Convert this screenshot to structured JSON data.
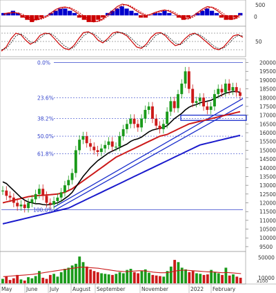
{
  "chart_data": [
    {
      "type": "bar",
      "panel": "macd-histogram",
      "title": "",
      "y_ticks": [
        500,
        0
      ],
      "series": [
        {
          "type": "bar",
          "colors": [
            "#0000cc",
            "#cc0000"
          ],
          "values": [
            1,
            1,
            2,
            1,
            -1,
            -2,
            -3,
            -2,
            -1,
            0,
            1,
            2,
            3,
            3,
            2,
            1,
            -1,
            -2,
            -3,
            -3,
            -2,
            -1,
            1,
            2,
            3,
            4,
            3,
            2,
            1,
            -1,
            -1,
            0,
            1,
            1,
            2,
            1,
            0,
            -1,
            -2,
            -1,
            0,
            1,
            2,
            3,
            2,
            1,
            -1,
            -2,
            -2,
            -1,
            1
          ]
        },
        {
          "type": "line",
          "color": "#cc0000",
          "values": [
            0.3,
            0.5,
            0.6,
            0.4,
            -0.2,
            -0.8,
            -1.1,
            -0.9,
            -0.6,
            -0.2,
            0.5,
            1.2,
            1.6,
            1.7,
            1.4,
            0.8,
            0.1,
            -0.6,
            -1.2,
            -1.4,
            -1.2,
            -0.7,
            0.2,
            1.0,
            1.8,
            2.3,
            2.1,
            1.6,
            0.9,
            0.3,
            -0.1,
            0.2,
            0.6,
            0.9,
            1.1,
            0.8,
            0.3,
            -0.3,
            -0.8,
            -0.7,
            -0.1,
            0.6,
            1.3,
            1.8,
            1.6,
            1.0,
            0.2,
            -0.5,
            -0.9,
            -0.6,
            0.2
          ]
        },
        {
          "type": "line",
          "color": "#cc0000",
          "dashed": true,
          "values": [
            0.1,
            0.3,
            0.5,
            0.5,
            0.2,
            -0.3,
            -0.8,
            -1.0,
            -0.8,
            -0.4,
            0.2,
            0.9,
            1.3,
            1.6,
            1.6,
            1.1,
            0.5,
            -0.2,
            -0.9,
            -1.3,
            -1.3,
            -0.9,
            -0.2,
            0.6,
            1.4,
            2.0,
            2.2,
            1.8,
            1.2,
            0.6,
            0.1,
            0.0,
            0.4,
            0.7,
            1.0,
            1.0,
            0.6,
            0.0,
            -0.5,
            -0.8,
            -0.4,
            0.3,
            1.0,
            1.5,
            1.7,
            1.3,
            0.6,
            -0.1,
            -0.7,
            -0.8,
            -0.2
          ]
        }
      ]
    },
    {
      "type": "line",
      "panel": "stochastic",
      "title": "",
      "y_ticks": [
        50
      ],
      "series": [
        {
          "color": "#cc0000",
          "values": [
            15,
            30,
            60,
            80,
            75,
            55,
            40,
            50,
            72,
            80,
            78,
            60,
            40,
            25,
            20,
            35,
            60,
            82,
            85,
            75,
            55,
            45,
            60,
            80,
            85,
            80,
            70,
            50,
            30,
            25,
            40,
            65,
            80,
            82,
            70,
            50,
            35,
            40,
            60,
            75,
            80,
            70,
            55,
            40,
            25,
            20,
            30,
            50,
            70,
            75,
            65
          ]
        },
        {
          "color": "#111111",
          "dashed": true,
          "values": [
            20,
            25,
            45,
            70,
            78,
            65,
            48,
            45,
            62,
            76,
            80,
            70,
            52,
            35,
            24,
            28,
            48,
            70,
            82,
            80,
            66,
            50,
            52,
            70,
            82,
            82,
            75,
            60,
            42,
            30,
            32,
            52,
            72,
            80,
            76,
            60,
            44,
            38,
            50,
            68,
            78,
            75,
            63,
            48,
            33,
            24,
            26,
            40,
            60,
            72,
            70
          ]
        }
      ]
    },
    {
      "type": "line",
      "panel": "price",
      "title": "",
      "y_ticks": [
        20000,
        19500,
        19000,
        18500,
        18000,
        17500,
        17000,
        16500,
        16000,
        15500,
        15000,
        14500,
        14000,
        13500,
        13000,
        12500,
        12000,
        11500,
        11000,
        10500,
        10000,
        9500
      ],
      "ylim": [
        9300,
        20100
      ],
      "x_labels": [
        "May",
        "June",
        "July",
        "August",
        "September",
        "November",
        "2022",
        "February"
      ],
      "fib_levels": [
        {
          "label": "0.0%",
          "value": 20000
        },
        {
          "label": "23.6%",
          "value": 18000
        },
        {
          "label": "38.2%",
          "value": 16800
        },
        {
          "label": "50.0%",
          "value": 15800
        },
        {
          "label": "61.8%",
          "value": 14800
        },
        {
          "label": "100.0%",
          "value": 11600
        }
      ],
      "price": [
        12700,
        12400,
        12300,
        12000,
        11800,
        11900,
        11700,
        12000,
        12200,
        12500,
        12800,
        12400,
        12000,
        11900,
        12100,
        12300,
        12600,
        13000,
        13300,
        13700,
        15000,
        15600,
        15800,
        15400,
        15200,
        15000,
        14900,
        15100,
        15300,
        15500,
        15200,
        15200,
        15800,
        16200,
        16500,
        16800,
        16500,
        16300,
        16800,
        17300,
        17500,
        16800,
        16400,
        16200,
        16500,
        17200,
        17800,
        17400,
        18200,
        18800,
        19500,
        18500,
        17700,
        17800,
        18000,
        17500,
        17300,
        17500,
        18200,
        18500,
        18300,
        18800,
        18400,
        18600,
        18300,
        18100
      ],
      "ema_black": [
        13200,
        13100,
        12900,
        12700,
        12500,
        12300,
        12150,
        12050,
        12000,
        11950,
        11950,
        11900,
        11880,
        11900,
        11950,
        12000,
        12100,
        12250,
        12400,
        12600,
        12900,
        13200,
        13500,
        13750,
        14000,
        14200,
        14400,
        14550,
        14700,
        14850,
        14950,
        15050,
        15150,
        15250,
        15350,
        15500,
        15600,
        15650,
        15750,
        15900,
        16050,
        16150,
        16200,
        16250,
        16300,
        16400,
        16600,
        16800,
        16950,
        17100,
        17300,
        17450,
        17550,
        17600,
        17700,
        17750,
        17800,
        17850,
        17950,
        18050,
        18150,
        18250,
        18300,
        18350,
        18350,
        18300
      ],
      "ma_red": [
        12000,
        12050,
        12100,
        12150,
        12200,
        12250,
        12300,
        12350,
        12380,
        12400,
        12420,
        12430,
        12450,
        12460,
        12480,
        12500,
        12550,
        12600,
        12700,
        12800,
        12950,
        13100,
        13250,
        13400,
        13550,
        13700,
        13850,
        14000,
        14150,
        14300,
        14450,
        14600,
        14700,
        14800,
        14900,
        15000,
        15100,
        15200,
        15300,
        15400,
        15500,
        15600,
        15700,
        15800,
        15850,
        15900,
        16000,
        16100,
        16200,
        16300,
        16400,
        16500,
        16550,
        16600,
        16650,
        16700,
        16750,
        16800,
        16850,
        16900,
        16950,
        17000,
        17050,
        17100,
        17150,
        17200
      ],
      "ma_blue": [
        10800,
        10850,
        10900,
        10950,
        11000,
        11050,
        11100,
        11150,
        11200,
        11250,
        11300,
        11350,
        11400,
        11450,
        11500,
        11550,
        11600,
        11650,
        11700,
        11800,
        11900,
        12000,
        12100,
        12200,
        12300,
        12400,
        12500,
        12600,
        12700,
        12800,
        12900,
        13000,
        13100,
        13200,
        13300,
        13400,
        13500,
        13600,
        13700,
        13800,
        13900,
        14000,
        14100,
        14200,
        14300,
        14400,
        14500,
        14600,
        14700,
        14800,
        14900,
        15000,
        15100,
        15200,
        15300,
        15350,
        15400,
        15450,
        15500,
        15550,
        15600,
        15650,
        15700,
        15750,
        15800,
        15850
      ],
      "support_box": [
        16700,
        17000
      ]
    },
    {
      "type": "bar",
      "panel": "volume",
      "title": "",
      "y_ticks": [
        50000,
        10000
      ],
      "unit_label": "x100",
      "values": [
        8000,
        12000,
        6000,
        9000,
        15000,
        7000,
        5000,
        11000,
        9000,
        13000,
        22000,
        10000,
        8000,
        15000,
        17000,
        12000,
        20000,
        26000,
        28000,
        32000,
        35000,
        48000,
        38000,
        30000,
        25000,
        22000,
        20000,
        18000,
        17000,
        16000,
        15000,
        17000,
        20000,
        18000,
        24000,
        26000,
        20000,
        18000,
        22000,
        25000,
        19000,
        15000,
        14000,
        13000,
        12000,
        22000,
        30000,
        42000,
        38000,
        28000,
        25000,
        20000,
        22000,
        18000,
        17000,
        15000,
        16000,
        24000,
        20000,
        18000,
        15000,
        28000,
        14000,
        16000,
        12000,
        10000
      ],
      "avg": [
        12000,
        12500,
        13000,
        13500,
        14000,
        14500,
        15000,
        15500,
        16000,
        17000,
        18000,
        19000,
        20000,
        21000,
        22000,
        23000,
        24000,
        25000,
        26000,
        27000,
        28000,
        29000,
        29000,
        28500,
        28000,
        27500,
        27000,
        26000,
        25000,
        24000,
        23000,
        22000,
        21500,
        21000,
        21000,
        21500,
        22000,
        22500,
        22500,
        22000,
        21000,
        20000,
        19500,
        19000,
        19000,
        19500,
        20500,
        22000,
        23000,
        23500,
        23500,
        23000,
        22500,
        22000,
        21500,
        21000,
        20500,
        20500,
        20000,
        19500,
        19000,
        19500,
        19000,
        18500,
        18000,
        17500
      ]
    }
  ]
}
